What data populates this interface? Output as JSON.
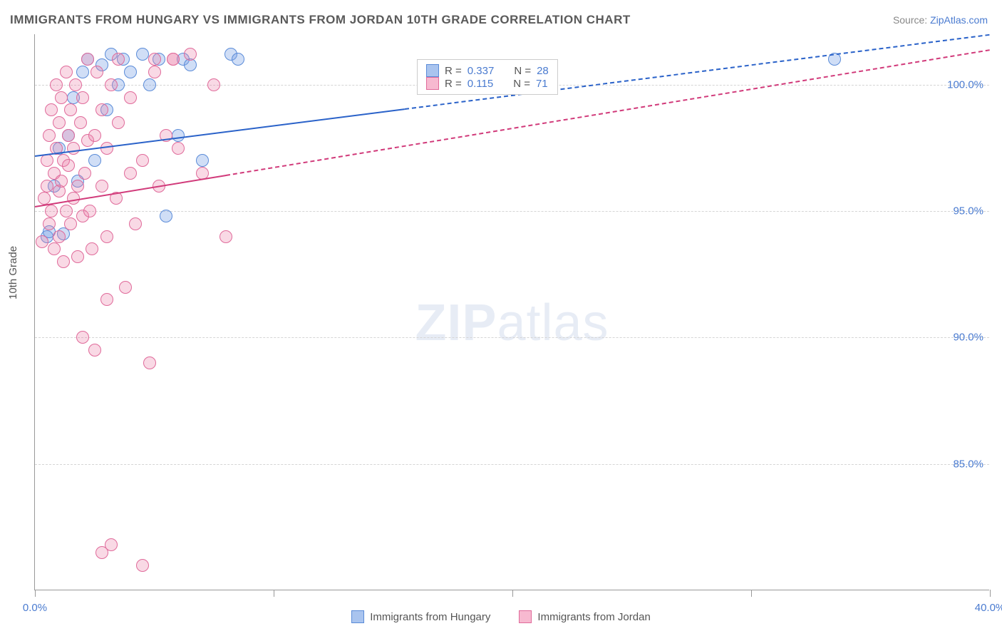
{
  "title": "IMMIGRANTS FROM HUNGARY VS IMMIGRANTS FROM JORDAN 10TH GRADE CORRELATION CHART",
  "source_prefix": "Source: ",
  "source_link": "ZipAtlas.com",
  "ylabel": "10th Grade",
  "watermark_bold": "ZIP",
  "watermark_rest": "atlas",
  "chart": {
    "type": "scatter",
    "xlim": [
      0,
      40
    ],
    "ylim": [
      80,
      102
    ],
    "xticks": [
      0,
      10,
      20,
      30,
      40
    ],
    "xtick_labels": {
      "0": "0.0%",
      "40": "40.0%"
    },
    "yticks": [
      85,
      90,
      95,
      100
    ],
    "ytick_labels": [
      "85.0%",
      "90.0%",
      "95.0%",
      "100.0%"
    ],
    "background_color": "#ffffff",
    "grid_color": "#d5d5d5",
    "axis_color": "#999999",
    "tick_label_color": "#4a7bd0",
    "point_radius": 9,
    "series": [
      {
        "name": "Immigrants from Hungary",
        "color_fill": "rgba(120,160,230,0.35)",
        "color_stroke": "#5a8bd8",
        "swatch_fill": "#a9c4ef",
        "swatch_border": "#5a8bd8",
        "R": "0.337",
        "N": "28",
        "trend": {
          "x1": 0,
          "y1": 97.2,
          "x2": 40,
          "y2": 102.0,
          "solid_until_x": 15.5,
          "color": "#2a62c9"
        },
        "points": [
          [
            0.5,
            94.0
          ],
          [
            0.6,
            94.2
          ],
          [
            0.8,
            96.0
          ],
          [
            1.0,
            97.5
          ],
          [
            1.2,
            94.1
          ],
          [
            1.4,
            98.0
          ],
          [
            1.6,
            99.5
          ],
          [
            1.8,
            96.2
          ],
          [
            2.0,
            100.5
          ],
          [
            2.2,
            101.0
          ],
          [
            2.5,
            97.0
          ],
          [
            2.8,
            100.8
          ],
          [
            3.0,
            99.0
          ],
          [
            3.2,
            101.2
          ],
          [
            3.5,
            100.0
          ],
          [
            3.7,
            101.0
          ],
          [
            4.0,
            100.5
          ],
          [
            4.5,
            101.2
          ],
          [
            4.8,
            100.0
          ],
          [
            5.2,
            101.0
          ],
          [
            5.5,
            94.8
          ],
          [
            6.0,
            98.0
          ],
          [
            6.2,
            101.0
          ],
          [
            6.5,
            100.8
          ],
          [
            7.0,
            97.0
          ],
          [
            8.2,
            101.2
          ],
          [
            8.5,
            101.0
          ],
          [
            33.5,
            101.0
          ]
        ]
      },
      {
        "name": "Immigrants from Jordan",
        "color_fill": "rgba(235,130,170,0.30)",
        "color_stroke": "#e06a9a",
        "swatch_fill": "#f7b9d0",
        "swatch_border": "#e06a9a",
        "R": "0.115",
        "N": "71",
        "trend": {
          "x1": 0,
          "y1": 95.2,
          "x2": 40,
          "y2": 101.4,
          "solid_until_x": 8.0,
          "color": "#d13a7a"
        },
        "points": [
          [
            0.3,
            93.8
          ],
          [
            0.4,
            95.5
          ],
          [
            0.5,
            96.0
          ],
          [
            0.5,
            97.0
          ],
          [
            0.6,
            94.5
          ],
          [
            0.6,
            98.0
          ],
          [
            0.7,
            95.0
          ],
          [
            0.7,
            99.0
          ],
          [
            0.8,
            93.5
          ],
          [
            0.8,
            96.5
          ],
          [
            0.9,
            97.5
          ],
          [
            0.9,
            100.0
          ],
          [
            1.0,
            94.0
          ],
          [
            1.0,
            95.8
          ],
          [
            1.0,
            98.5
          ],
          [
            1.1,
            96.2
          ],
          [
            1.1,
            99.5
          ],
          [
            1.2,
            93.0
          ],
          [
            1.2,
            97.0
          ],
          [
            1.3,
            95.0
          ],
          [
            1.3,
            100.5
          ],
          [
            1.4,
            96.8
          ],
          [
            1.4,
            98.0
          ],
          [
            1.5,
            94.5
          ],
          [
            1.5,
            99.0
          ],
          [
            1.6,
            95.5
          ],
          [
            1.6,
            97.5
          ],
          [
            1.7,
            100.0
          ],
          [
            1.8,
            93.2
          ],
          [
            1.8,
            96.0
          ],
          [
            1.9,
            98.5
          ],
          [
            2.0,
            90.0
          ],
          [
            2.0,
            94.8
          ],
          [
            2.0,
            99.5
          ],
          [
            2.1,
            96.5
          ],
          [
            2.2,
            97.8
          ],
          [
            2.2,
            101.0
          ],
          [
            2.3,
            95.0
          ],
          [
            2.4,
            93.5
          ],
          [
            2.5,
            89.5
          ],
          [
            2.5,
            98.0
          ],
          [
            2.6,
            100.5
          ],
          [
            2.8,
            96.0
          ],
          [
            2.8,
            99.0
          ],
          [
            3.0,
            91.5
          ],
          [
            3.0,
            94.0
          ],
          [
            3.0,
            97.5
          ],
          [
            3.2,
            100.0
          ],
          [
            3.4,
            95.5
          ],
          [
            3.5,
            98.5
          ],
          [
            3.5,
            101.0
          ],
          [
            3.8,
            92.0
          ],
          [
            4.0,
            96.5
          ],
          [
            4.0,
            99.5
          ],
          [
            4.2,
            94.5
          ],
          [
            4.5,
            81.0
          ],
          [
            4.5,
            97.0
          ],
          [
            4.8,
            89.0
          ],
          [
            5.0,
            100.5
          ],
          [
            5.2,
            96.0
          ],
          [
            5.5,
            98.0
          ],
          [
            5.8,
            101.0
          ],
          [
            6.0,
            97.5
          ],
          [
            6.5,
            101.2
          ],
          [
            7.0,
            96.5
          ],
          [
            7.5,
            100.0
          ],
          [
            8.0,
            94.0
          ],
          [
            2.8,
            81.5
          ],
          [
            3.2,
            81.8
          ],
          [
            5.0,
            101.0
          ],
          [
            5.8,
            101.0
          ]
        ]
      }
    ]
  },
  "legend_stats": {
    "R_label": "R = ",
    "N_label": "N = "
  },
  "bottom_legend": [
    {
      "label": "Immigrants from Hungary",
      "fill": "#a9c4ef",
      "border": "#5a8bd8"
    },
    {
      "label": "Immigrants from Jordan",
      "fill": "#f7b9d0",
      "border": "#e06a9a"
    }
  ]
}
